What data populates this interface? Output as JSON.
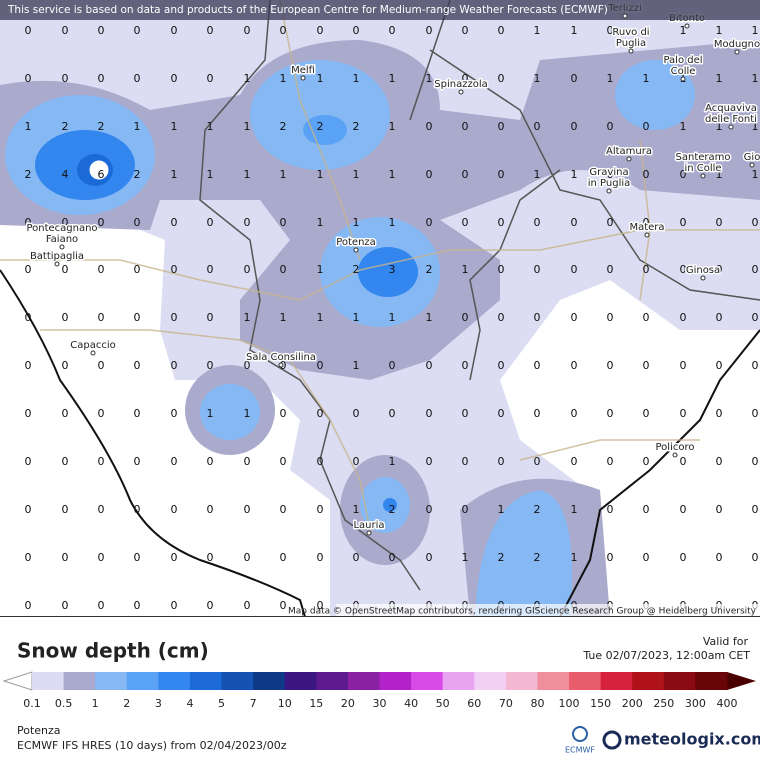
{
  "header": {
    "notice": "This service is based on data and products of the European Centre for Medium-range Weather Forecasts (ECMWF)",
    "attribution": "Map data © OpenStreetMap contributors, rendering GIScience Research Group @ Heidelberg University"
  },
  "grid": {
    "rows": [
      [
        0,
        0,
        0,
        0,
        0,
        0,
        0,
        0,
        0,
        0,
        0,
        0,
        0,
        0,
        1,
        1,
        0,
        1,
        1,
        1,
        1
      ],
      [
        0,
        0,
        0,
        0,
        0,
        0,
        1,
        1,
        1,
        1,
        1,
        1,
        0,
        0,
        1,
        0,
        1,
        1,
        1,
        1,
        1
      ],
      [
        1,
        2,
        2,
        1,
        1,
        1,
        1,
        2,
        2,
        2,
        1,
        0,
        0,
        0,
        0,
        0,
        0,
        0,
        1,
        1,
        1
      ],
      [
        2,
        4,
        6,
        2,
        1,
        1,
        1,
        1,
        1,
        1,
        1,
        0,
        0,
        0,
        1,
        1,
        0,
        0,
        0,
        1,
        1
      ],
      [
        0,
        0,
        0,
        0,
        0,
        0,
        0,
        0,
        1,
        1,
        1,
        0,
        0,
        0,
        0,
        0,
        0,
        0,
        0,
        0,
        0
      ],
      [
        0,
        0,
        0,
        0,
        0,
        0,
        0,
        0,
        1,
        2,
        3,
        2,
        1,
        0,
        0,
        0,
        0,
        0,
        0,
        0,
        0
      ],
      [
        0,
        0,
        0,
        0,
        0,
        0,
        1,
        1,
        1,
        1,
        1,
        1,
        0,
        0,
        0,
        0,
        0,
        0,
        0,
        0,
        0
      ],
      [
        0,
        0,
        0,
        0,
        0,
        0,
        0,
        0,
        0,
        1,
        0,
        0,
        0,
        0,
        0,
        0,
        0,
        0,
        0,
        0,
        0
      ],
      [
        0,
        0,
        0,
        0,
        0,
        1,
        1,
        0,
        0,
        0,
        0,
        0,
        0,
        0,
        0,
        0,
        0,
        0,
        0,
        0,
        0
      ],
      [
        0,
        0,
        0,
        0,
        0,
        0,
        0,
        0,
        0,
        0,
        1,
        0,
        0,
        0,
        0,
        0,
        0,
        0,
        0,
        0,
        0
      ],
      [
        0,
        0,
        0,
        0,
        0,
        0,
        0,
        0,
        0,
        1,
        2,
        0,
        0,
        1,
        2,
        1,
        0,
        0,
        0,
        0,
        0
      ],
      [
        0,
        0,
        0,
        0,
        0,
        0,
        0,
        0,
        0,
        0,
        0,
        0,
        1,
        2,
        2,
        1,
        0,
        0,
        0,
        0,
        0
      ],
      [
        0,
        0,
        0,
        0,
        0,
        0,
        0,
        0,
        0,
        0,
        0,
        0,
        0,
        0,
        0,
        0,
        0,
        0,
        0,
        0,
        0
      ]
    ]
  },
  "places": [
    [
      "Terlizzi"
    ],
    [
      "Bitonto"
    ],
    [
      "Ruvo di",
      "Puglia"
    ],
    [
      "Modugno"
    ],
    [
      "Palo del",
      "Colle"
    ],
    [
      "Melfi"
    ],
    [
      "Spinazzola"
    ],
    [
      "Acquaviva",
      "delle Fonti"
    ],
    [
      "Altamura"
    ],
    [
      "Gravina",
      "in Puglia"
    ],
    [
      "Santeramo",
      "in Colle"
    ],
    [
      "Gio"
    ],
    [
      "Pontecagnano",
      "Faiano"
    ],
    [
      "Battipaglia"
    ],
    [
      "Potenza"
    ],
    [
      "Matera"
    ],
    [
      "Ginosa"
    ],
    [
      "Capaccio"
    ],
    [
      "Sala Consilina"
    ],
    [
      "Policoro"
    ],
    [
      "Lauria"
    ]
  ],
  "legend": {
    "title": "Snow depth (cm)",
    "valid_label": "Valid for",
    "valid_time": "Tue 02/07/2023, 12:00am CET",
    "labels": [
      0.1,
      0.5,
      1,
      2,
      3,
      4,
      5,
      7,
      10,
      15,
      20,
      30,
      40,
      50,
      60,
      70,
      80,
      100,
      150,
      200,
      250,
      300,
      400
    ],
    "colors": [
      "#dcdcf4",
      "#a9a9cd",
      "#86b8f4",
      "#5aa2f5",
      "#3486ef",
      "#1c6ad8",
      "#1552b2",
      "#0e3a88",
      "#3b1682",
      "#5d1a8e",
      "#8a20a4",
      "#b322c8",
      "#d84ae6",
      "#e8a4f1",
      "#f3d0f6",
      "#f5b8d2",
      "#f18e9c",
      "#e85c6c",
      "#d6223c",
      "#b0121c",
      "#8a0b12",
      "#680508"
    ]
  },
  "footer": {
    "location": "Potenza",
    "model": "ECMWF IFS HRES (10 days) from 02/04/2023/00z",
    "ecmwf_logo": "ECMWF",
    "brand": "meteologix.com"
  }
}
